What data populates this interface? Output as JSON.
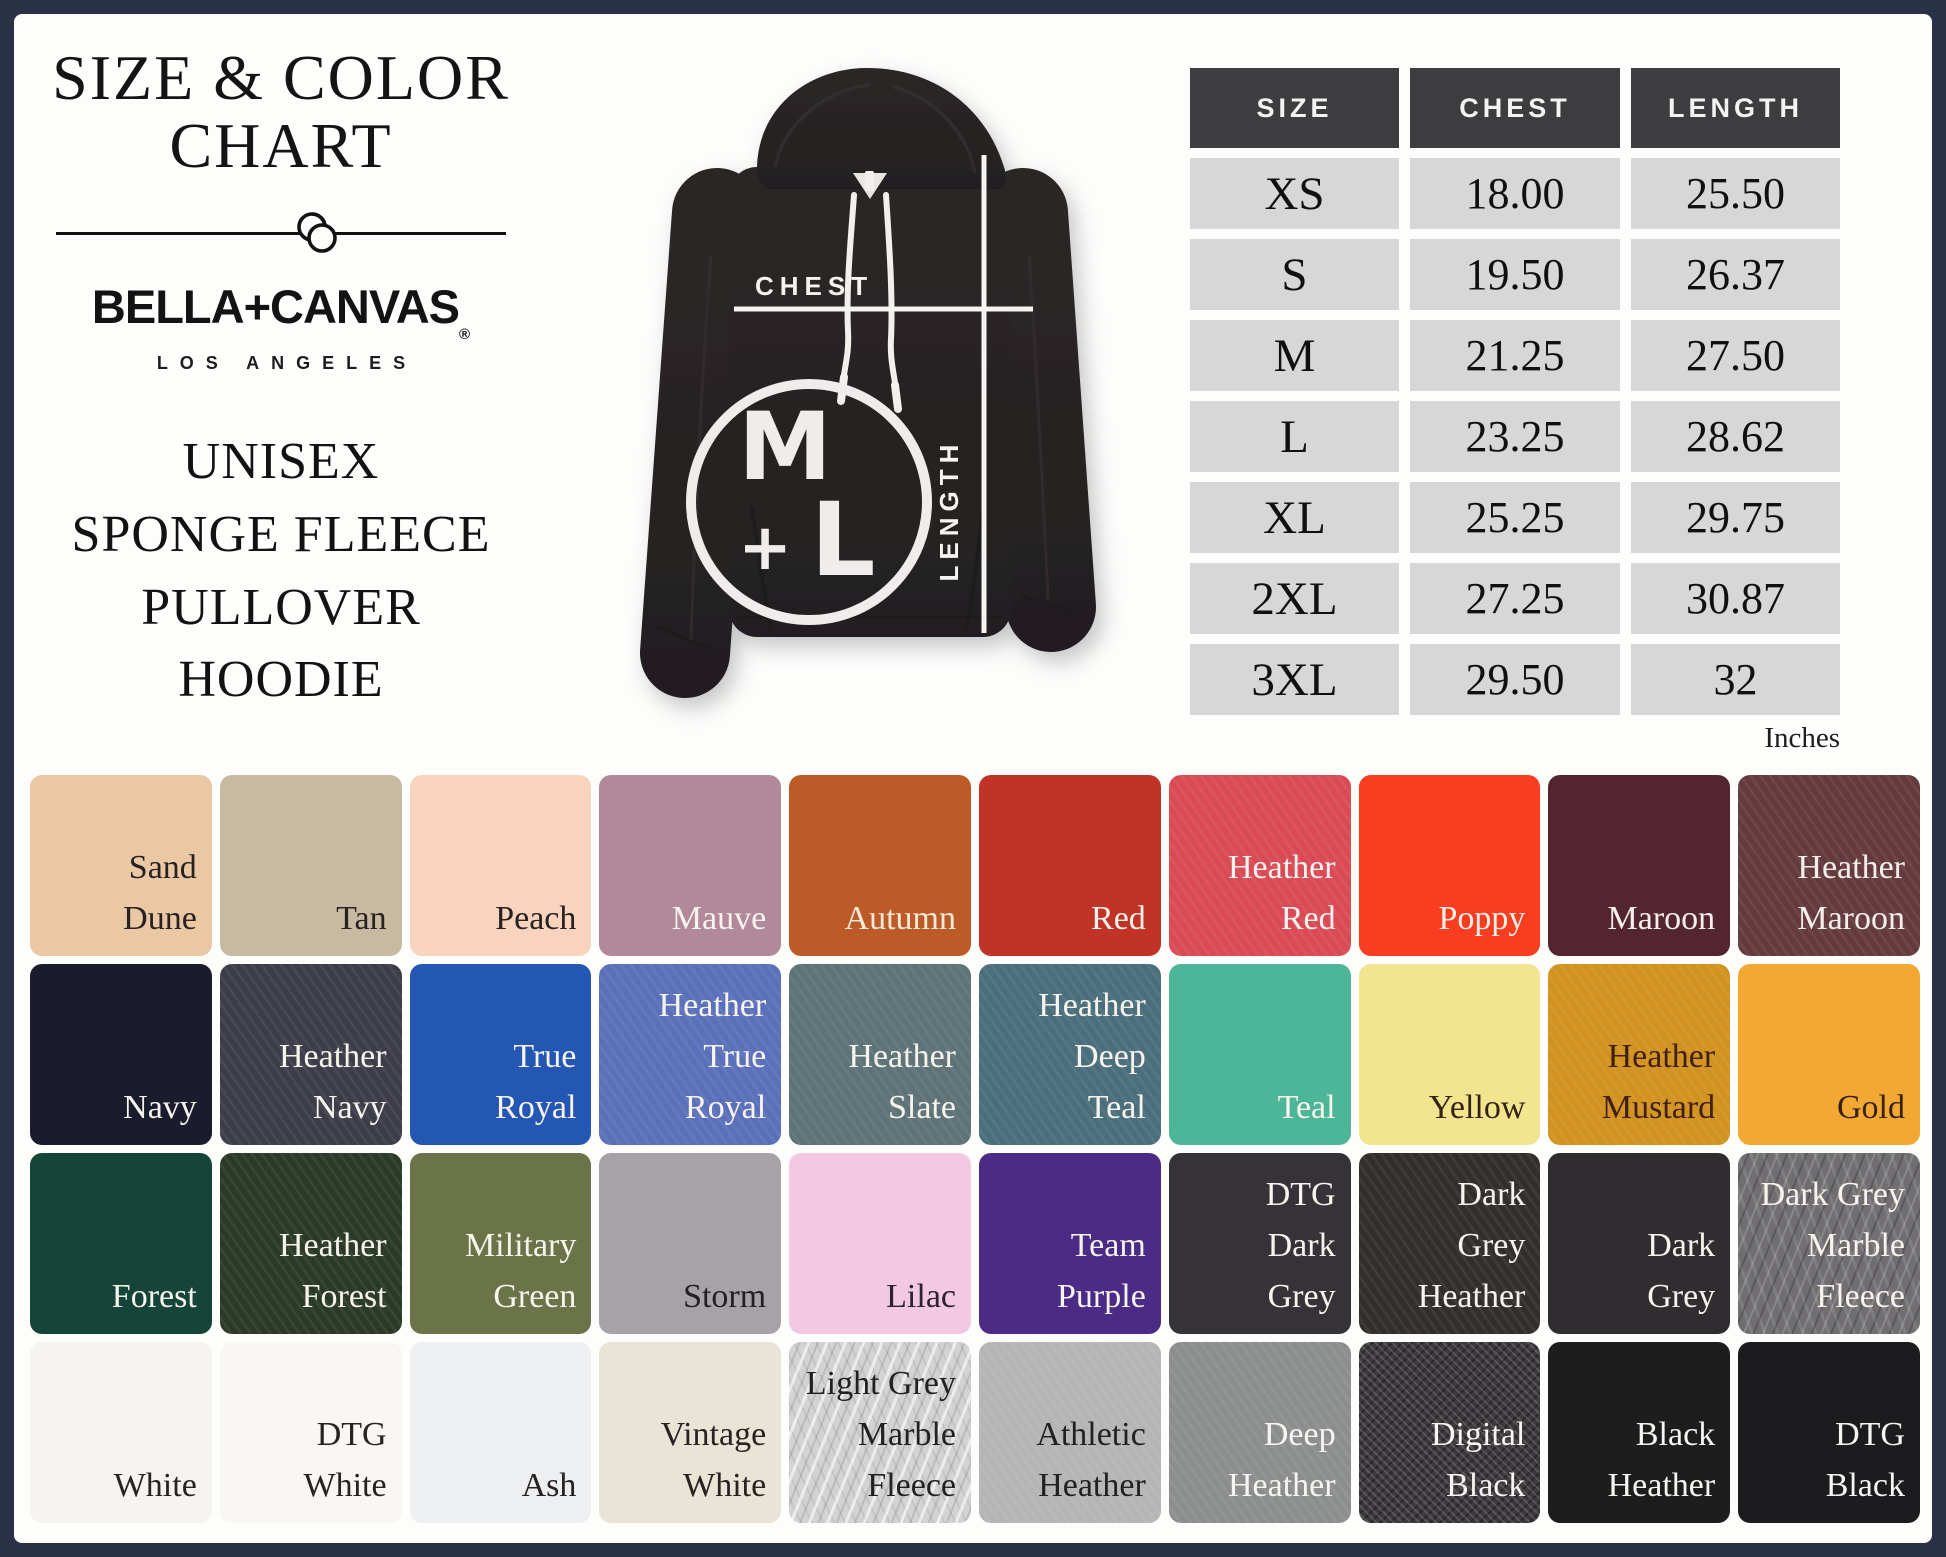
{
  "styles": {
    "frame_color": "#2b3147",
    "page_bg": "#fdfdfc",
    "table_header_bg": "#3d3c3e",
    "table_cell_bg": "#d7d7d8",
    "hoodie_color": "#272324",
    "overlay_white": "#f4f1ee"
  },
  "left_panel": {
    "title_line1": "SIZE & COLOR",
    "title_line2": "CHART",
    "brand": "BELLA+CANVAS",
    "registered_mark": "®",
    "brand_city": "LOS ANGELES",
    "product_lines": [
      "UNISEX",
      "SPONGE FLEECE",
      "PULLOVER",
      "HOODIE"
    ]
  },
  "hoodie_figure": {
    "chest_label": "CHEST",
    "length_label": "LENGTH",
    "print_letters": {
      "m": "M",
      "plus": "+",
      "l": "L"
    }
  },
  "chart_data": {
    "type": "table",
    "title": "Size & Color Chart",
    "columns": [
      "SIZE",
      "CHEST",
      "LENGTH"
    ],
    "rows": [
      {
        "size": "XS",
        "chest": "18.00",
        "length": "25.50"
      },
      {
        "size": "S",
        "chest": "19.50",
        "length": "26.37"
      },
      {
        "size": "M",
        "chest": "21.25",
        "length": "27.50"
      },
      {
        "size": "L",
        "chest": "23.25",
        "length": "28.62"
      },
      {
        "size": "XL",
        "chest": "25.25",
        "length": "29.75"
      },
      {
        "size": "2XL",
        "chest": "27.25",
        "length": "30.87"
      },
      {
        "size": "3XL",
        "chest": "29.50",
        "length": "32"
      }
    ],
    "unit_label": "Inches",
    "swatch_rows": [
      [
        {
          "name": "Sand Dune",
          "lines": [
            "Sand",
            "Dune"
          ],
          "bg": "#eac8a4",
          "fg": "#292222",
          "texture": ""
        },
        {
          "name": "Tan",
          "lines": [
            "Tan"
          ],
          "bg": "#c7baa1",
          "fg": "#292222",
          "texture": ""
        },
        {
          "name": "Peach",
          "lines": [
            "Peach"
          ],
          "bg": "#f8d3bd",
          "fg": "#292222",
          "texture": ""
        },
        {
          "name": "Mauve",
          "lines": [
            "Mauve"
          ],
          "bg": "#b2899a",
          "fg": "#f7f4ee",
          "texture": ""
        },
        {
          "name": "Autumn",
          "lines": [
            "Autumn"
          ],
          "bg": "#bd5b28",
          "fg": "#f3ead8",
          "texture": ""
        },
        {
          "name": "Red",
          "lines": [
            "Red"
          ],
          "bg": "#c03326",
          "fg": "#f7f1ea",
          "texture": ""
        },
        {
          "name": "Heather Red",
          "lines": [
            "Heather",
            "Red"
          ],
          "bg": "#d94a55",
          "fg": "#f9f2ef",
          "texture": "tx-heather"
        },
        {
          "name": "Poppy",
          "lines": [
            "Poppy"
          ],
          "bg": "#f93d20",
          "fg": "#f7efe7",
          "texture": ""
        },
        {
          "name": "Maroon",
          "lines": [
            "Maroon"
          ],
          "bg": "#522530",
          "fg": "#f5efe9",
          "texture": ""
        },
        {
          "name": "Heather Maroon",
          "lines": [
            "Heather",
            "Maroon"
          ],
          "bg": "#643a3f",
          "fg": "#f5efe9",
          "texture": "tx-heather"
        }
      ],
      [
        {
          "name": "Navy",
          "lines": [
            "Navy"
          ],
          "bg": "#1a1b2c",
          "fg": "#f7f4ee",
          "texture": ""
        },
        {
          "name": "Heather Navy",
          "lines": [
            "Heather",
            "Navy"
          ],
          "bg": "#3c3d48",
          "fg": "#f7f4ee",
          "texture": "tx-heather"
        },
        {
          "name": "True Royal",
          "lines": [
            "True",
            "Royal"
          ],
          "bg": "#2457b4",
          "fg": "#f7f4ee",
          "texture": ""
        },
        {
          "name": "Heather True Royal",
          "lines": [
            "Heather",
            "True",
            "Royal"
          ],
          "bg": "#5a70ba",
          "fg": "#f7f4ee",
          "texture": "tx-heather"
        },
        {
          "name": "Heather Slate",
          "lines": [
            "Heather",
            "Slate"
          ],
          "bg": "#5e7377",
          "fg": "#f7f4ee",
          "texture": "tx-heather"
        },
        {
          "name": "Heather Deep Teal",
          "lines": [
            "Heather",
            "Deep",
            "Teal"
          ],
          "bg": "#4a6e7b",
          "fg": "#f7f4ee",
          "texture": "tx-heather"
        },
        {
          "name": "Teal",
          "lines": [
            "Teal"
          ],
          "bg": "#4eb698",
          "fg": "#f7f4ee",
          "texture": ""
        },
        {
          "name": "Yellow",
          "lines": [
            "Yellow"
          ],
          "bg": "#f3e490",
          "fg": "#33240f",
          "texture": ""
        },
        {
          "name": "Heather Mustard",
          "lines": [
            "Heather",
            "Mustard"
          ],
          "bg": "#d2921f",
          "fg": "#3f2012",
          "texture": "tx-heather"
        },
        {
          "name": "Gold",
          "lines": [
            "Gold"
          ],
          "bg": "#f2a833",
          "fg": "#372212",
          "texture": ""
        }
      ],
      [
        {
          "name": "Forest",
          "lines": [
            "Forest"
          ],
          "bg": "#154538",
          "fg": "#f7f4ee",
          "texture": ""
        },
        {
          "name": "Heather Forest",
          "lines": [
            "Heather",
            "Forest"
          ],
          "bg": "#2b3a26",
          "fg": "#f7f4ee",
          "texture": "tx-heather"
        },
        {
          "name": "Military Green",
          "lines": [
            "Military",
            "Green"
          ],
          "bg": "#6b7348",
          "fg": "#f7f4ee",
          "texture": ""
        },
        {
          "name": "Storm",
          "lines": [
            "Storm"
          ],
          "bg": "#a7a2a8",
          "fg": "#232023",
          "texture": ""
        },
        {
          "name": "Lilac",
          "lines": [
            "Lilac"
          ],
          "bg": "#f3c8e3",
          "fg": "#2c2331",
          "texture": ""
        },
        {
          "name": "Team Purple",
          "lines": [
            "Team",
            "Purple"
          ],
          "bg": "#4c2b87",
          "fg": "#f7f4ee",
          "texture": ""
        },
        {
          "name": "DTG Dark Grey",
          "lines": [
            "DTG",
            "Dark",
            "Grey"
          ],
          "bg": "#353338",
          "fg": "#f7f4ee",
          "texture": ""
        },
        {
          "name": "Dark Grey Heather",
          "lines": [
            "Dark",
            "Grey",
            "Heather"
          ],
          "bg": "#332e2e",
          "fg": "#f7f4ee",
          "texture": "tx-heather"
        },
        {
          "name": "Dark Grey",
          "lines": [
            "Dark",
            "Grey"
          ],
          "bg": "#2f2d30",
          "fg": "#f7f4ee",
          "texture": ""
        },
        {
          "name": "Dark Grey Marble Fleece",
          "lines": [
            "Dark Grey",
            "Marble",
            "Fleece"
          ],
          "bg": "#706e71",
          "fg": "#f7f4ee",
          "texture": "tx-marble-dark"
        }
      ],
      [
        {
          "name": "White",
          "lines": [
            "White"
          ],
          "bg": "#f5f4f2",
          "fg": "#292222",
          "texture": ""
        },
        {
          "name": "DTG White",
          "lines": [
            "DTG",
            "White"
          ],
          "bg": "#f8f7f5",
          "fg": "#292222",
          "texture": ""
        },
        {
          "name": "Ash",
          "lines": [
            "Ash"
          ],
          "bg": "#edeff1",
          "fg": "#292222",
          "texture": ""
        },
        {
          "name": "Vintage White",
          "lines": [
            "Vintage",
            "White"
          ],
          "bg": "#e9e4d5",
          "fg": "#292222",
          "texture": ""
        },
        {
          "name": "Light Grey Marble Fleece",
          "lines": [
            "Light Grey",
            "Marble",
            "Fleece"
          ],
          "bg": "#d3d3d3",
          "fg": "#232021",
          "texture": "tx-marble-light"
        },
        {
          "name": "Athletic Heather",
          "lines": [
            "Athletic",
            "Heather"
          ],
          "bg": "#b5b5b6",
          "fg": "#232021",
          "texture": "tx-heather"
        },
        {
          "name": "Deep Heather",
          "lines": [
            "Deep",
            "Heather"
          ],
          "bg": "#8c8e8e",
          "fg": "#f7f5f1",
          "texture": "tx-heather"
        },
        {
          "name": "Digital Black",
          "lines": [
            "Digital",
            "Black"
          ],
          "bg": "#3d3a3d",
          "fg": "#f7f5f1",
          "texture": "tx-speckle"
        },
        {
          "name": "Black Heather",
          "lines": [
            "Black",
            "Heather"
          ],
          "bg": "#1d1d1d",
          "fg": "#f7f5f1",
          "texture": ""
        },
        {
          "name": "DTG Black",
          "lines": [
            "DTG",
            "Black"
          ],
          "bg": "#1c1b1d",
          "fg": "#f7f5f1",
          "texture": ""
        }
      ]
    ]
  }
}
